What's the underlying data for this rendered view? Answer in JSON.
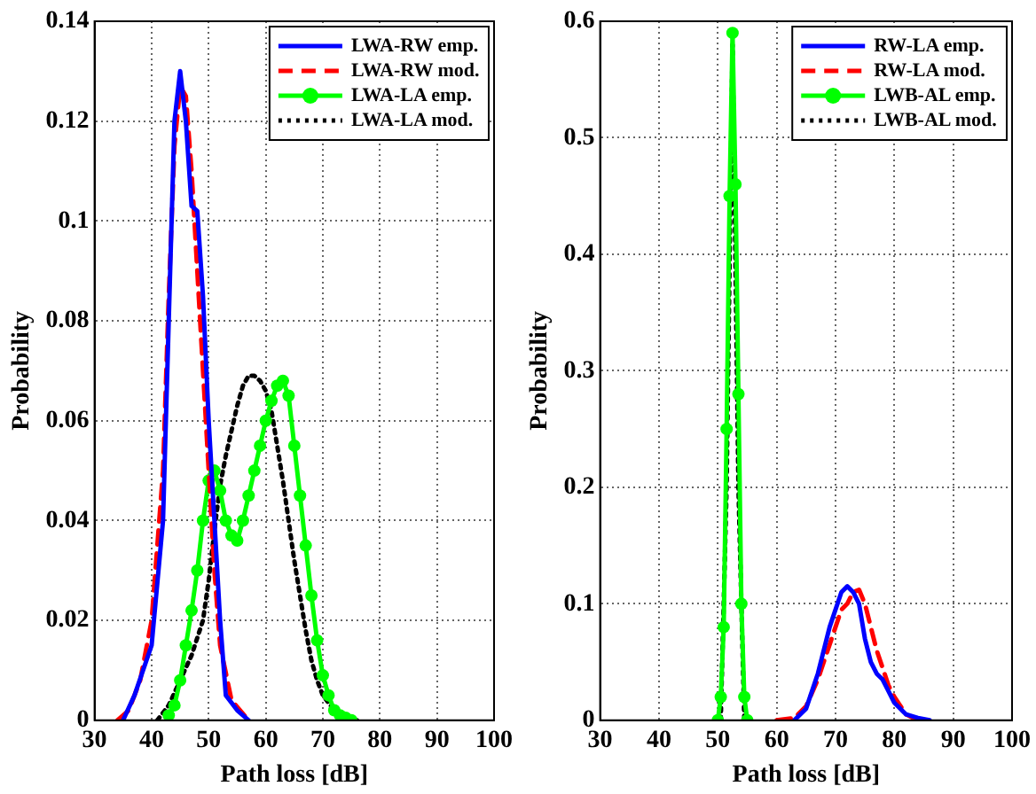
{
  "chart_data": [
    {
      "type": "line",
      "xlabel": "Path loss [dB]",
      "ylabel": "Probability",
      "xlim": [
        30,
        100
      ],
      "xticks": [
        30,
        40,
        50,
        60,
        70,
        80,
        90,
        100
      ],
      "ylim": [
        0,
        0.14
      ],
      "yticks": [
        0,
        0.02,
        0.04,
        0.06,
        0.08,
        0.1,
        0.12,
        0.14
      ],
      "grid": true,
      "legend": "top right",
      "series": [
        {
          "name": "LWA-RW emp.",
          "color": "#0000ff",
          "marker": "none",
          "line_style": "solid",
          "x": [
            35,
            37,
            40,
            42,
            43,
            44,
            45,
            46,
            47,
            48,
            49,
            50,
            51,
            52,
            53,
            55,
            57
          ],
          "values": [
            0,
            0.005,
            0.015,
            0.04,
            0.08,
            0.12,
            0.13,
            0.12,
            0.103,
            0.102,
            0.085,
            0.06,
            0.04,
            0.02,
            0.005,
            0.002,
            0
          ]
        },
        {
          "name": "LWA-RW mod.",
          "color": "#ff0000",
          "marker": "none",
          "line_style": "dashed",
          "x": [
            34,
            36,
            38,
            40,
            42,
            43,
            44,
            45,
            46,
            47,
            48,
            49,
            50,
            51,
            52,
            54,
            57
          ],
          "values": [
            0,
            0.002,
            0.008,
            0.02,
            0.05,
            0.085,
            0.115,
            0.127,
            0.125,
            0.11,
            0.09,
            0.07,
            0.05,
            0.03,
            0.015,
            0.004,
            0
          ]
        },
        {
          "name": "LWA-LA emp.",
          "color": "#00ff00",
          "marker": "circle",
          "line_style": "solid",
          "x": [
            43,
            44,
            45,
            46,
            47,
            48,
            49,
            50,
            51,
            52,
            53,
            54,
            55,
            56,
            57,
            58,
            59,
            60,
            61,
            62,
            63,
            64,
            65,
            66,
            67,
            68,
            69,
            70,
            71,
            72,
            73,
            74,
            75
          ],
          "values": [
            0.001,
            0.003,
            0.008,
            0.015,
            0.022,
            0.03,
            0.04,
            0.048,
            0.05,
            0.046,
            0.04,
            0.037,
            0.036,
            0.04,
            0.045,
            0.05,
            0.055,
            0.06,
            0.064,
            0.067,
            0.068,
            0.065,
            0.055,
            0.045,
            0.035,
            0.025,
            0.016,
            0.009,
            0.005,
            0.002,
            0.001,
            0.0005,
            0
          ]
        },
        {
          "name": "LWA-LA mod.",
          "color": "#000000",
          "marker": "none",
          "line_style": "dotted",
          "x": [
            41,
            43,
            45,
            47,
            49,
            50,
            51,
            52,
            53,
            54,
            55,
            56,
            57,
            58,
            59,
            60,
            61,
            62,
            63,
            64,
            65,
            66,
            67,
            68,
            69,
            70,
            72,
            76
          ],
          "values": [
            0,
            0.003,
            0.008,
            0.013,
            0.02,
            0.028,
            0.038,
            0.047,
            0.053,
            0.058,
            0.063,
            0.067,
            0.069,
            0.069,
            0.068,
            0.066,
            0.062,
            0.055,
            0.048,
            0.04,
            0.032,
            0.025,
            0.018,
            0.012,
            0.008,
            0.005,
            0.002,
            0
          ]
        }
      ]
    },
    {
      "type": "line",
      "xlabel": "Path loss [dB]",
      "ylabel": "Probability",
      "xlim": [
        30,
        100
      ],
      "xticks": [
        30,
        40,
        50,
        60,
        70,
        80,
        90,
        100
      ],
      "ylim": [
        0,
        0.6
      ],
      "yticks": [
        0,
        0.1,
        0.2,
        0.3,
        0.4,
        0.5,
        0.6
      ],
      "grid": true,
      "legend": "top right",
      "series": [
        {
          "name": "RW-LA emp.",
          "color": "#0000ff",
          "marker": "none",
          "line_style": "solid",
          "x": [
            63,
            65,
            67,
            69,
            71,
            72,
            73,
            74,
            75,
            76,
            77,
            78,
            79,
            80,
            82,
            84,
            86
          ],
          "values": [
            0,
            0.01,
            0.04,
            0.08,
            0.11,
            0.115,
            0.11,
            0.1,
            0.07,
            0.05,
            0.04,
            0.035,
            0.025,
            0.015,
            0.005,
            0.002,
            0
          ]
        },
        {
          "name": "RW-LA mod.",
          "color": "#ff0000",
          "marker": "none",
          "line_style": "dashed",
          "x": [
            60,
            63,
            65,
            67,
            69,
            71,
            72,
            73,
            74,
            75,
            76,
            77,
            78,
            79,
            80,
            82,
            84
          ],
          "values": [
            0,
            0.002,
            0.012,
            0.035,
            0.065,
            0.095,
            0.1,
            0.11,
            0.112,
            0.1,
            0.08,
            0.06,
            0.045,
            0.03,
            0.02,
            0.005,
            0
          ]
        },
        {
          "name": "LWB-AL emp.",
          "color": "#00ff00",
          "marker": "circle",
          "line_style": "solid",
          "x": [
            50,
            50.5,
            51,
            51.5,
            52,
            52.5,
            53,
            53.5,
            54,
            54.5,
            55
          ],
          "values": [
            0,
            0.02,
            0.08,
            0.25,
            0.45,
            0.59,
            0.46,
            0.28,
            0.1,
            0.02,
            0
          ]
        },
        {
          "name": "LWB-AL mod.",
          "color": "#000000",
          "marker": "none",
          "line_style": "dotted",
          "x": [
            50.5,
            51.5,
            52.5,
            53.5,
            54.5
          ],
          "values": [
            0,
            0.2,
            0.58,
            0.2,
            0
          ]
        }
      ]
    }
  ]
}
